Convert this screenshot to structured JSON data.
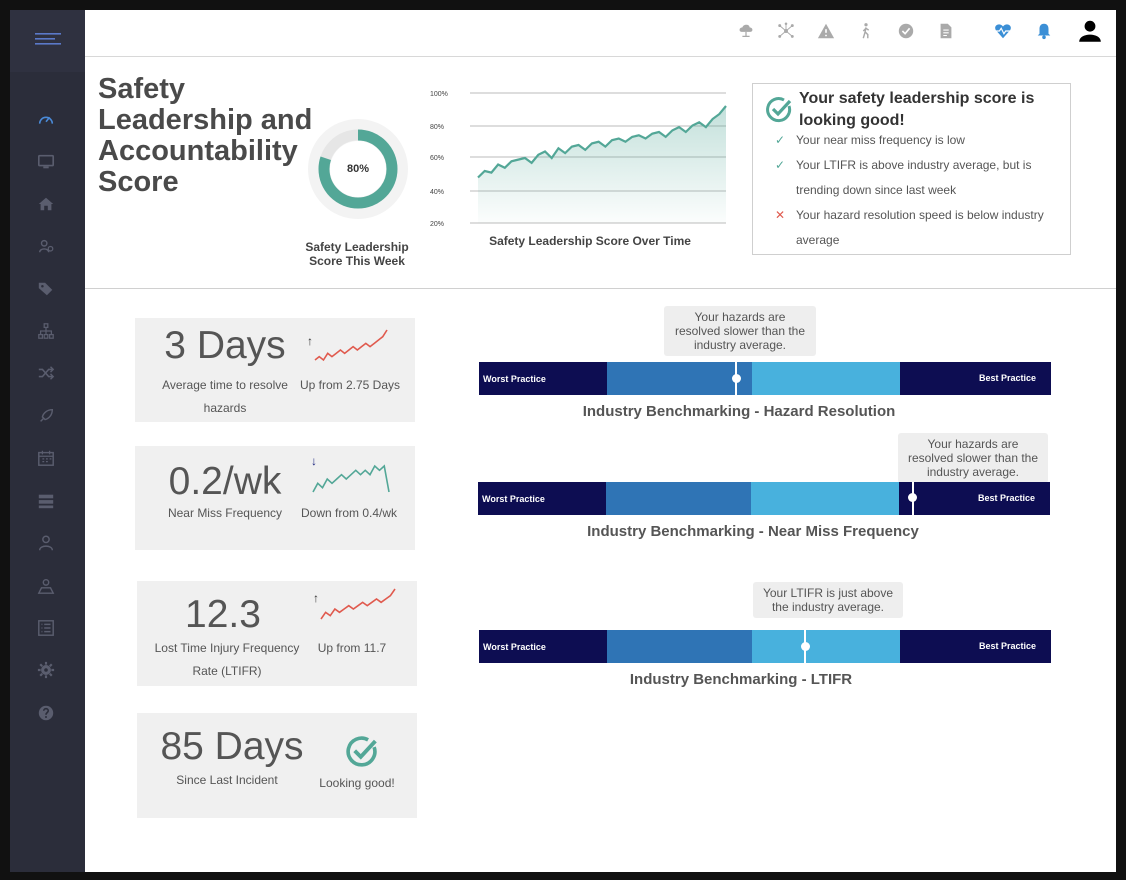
{
  "app": {
    "colors": {
      "sidebar": "#2b2d3a",
      "teal": "#53a797",
      "navy": "#0d0d52",
      "mid_blue": "#2f74b5",
      "light_blue": "#48b1dd",
      "red": "#e05a4e"
    }
  },
  "sidebar": {
    "items": [
      {
        "icon": "speedometer-icon"
      },
      {
        "icon": "monitor-icon"
      },
      {
        "icon": "home-icon"
      },
      {
        "icon": "users-cog-icon"
      },
      {
        "icon": "tags-icon"
      },
      {
        "icon": "org-chart-icon"
      },
      {
        "icon": "shuffle-icon"
      },
      {
        "icon": "rocket-icon"
      },
      {
        "icon": "calendar-icon"
      },
      {
        "icon": "server-icon"
      },
      {
        "icon": "user-icon"
      },
      {
        "icon": "map-user-icon"
      },
      {
        "icon": "list-icon"
      },
      {
        "icon": "gear-icon"
      },
      {
        "icon": "help-icon"
      }
    ]
  },
  "topbar": {
    "icons": [
      "cloud-network-icon",
      "network-icon",
      "warning-icon",
      "walking-person-icon",
      "check-circle-icon",
      "document-icon",
      "heart-rate-icon",
      "bell-icon",
      "user-avatar-icon"
    ]
  },
  "score": {
    "title": "Safety Leadership and Accountability Score",
    "donut_percent": 80,
    "donut_text": "80%",
    "donut_label": "Safety Leadership Score This Week"
  },
  "chart_data": {
    "type": "area",
    "title": "Safety Leadership Score Over Time",
    "xlabel": "",
    "ylabel": "",
    "yticks": [
      "100%",
      "80%",
      "60%",
      "40%",
      "20%"
    ],
    "ylim": [
      20,
      100
    ],
    "values": [
      48,
      52,
      51,
      56,
      54,
      58,
      59,
      60,
      57,
      62,
      64,
      60,
      66,
      63,
      67,
      68,
      65,
      69,
      70,
      67,
      71,
      72,
      70,
      73,
      74,
      72,
      75,
      76,
      73,
      77,
      79,
      76,
      80,
      82,
      79,
      84,
      87,
      92
    ]
  },
  "status_box": {
    "heading": "Your safety leadership score is looking good!",
    "items": [
      {
        "mark": "✓",
        "ok": true,
        "text": "Your near miss frequency is low"
      },
      {
        "mark": "✓",
        "ok": true,
        "text": "Your LTIFR is above industry average, but is trending down since last week"
      },
      {
        "mark": "✕",
        "ok": false,
        "text": "Your hazard resolution speed is below industry average"
      }
    ]
  },
  "kpis": [
    {
      "value": "3 Days",
      "label": "Average time  to resolve hazards",
      "trend_arrow": "↑",
      "trend_text": "Up from 2.75 Days",
      "spark_color": "#e05a4e",
      "spark": [
        3,
        4,
        3,
        5,
        4,
        5,
        6,
        5,
        6,
        7,
        6,
        7,
        8,
        7,
        8,
        9,
        10,
        12
      ]
    },
    {
      "value": "0.2/wk",
      "label": "Near Miss Frequency",
      "trend_arrow": "↓",
      "trend_text": "Down from 0.4/wk",
      "spark_color": "#53a797",
      "spark": [
        4,
        6,
        5,
        7,
        6,
        7,
        8,
        7,
        8,
        9,
        8,
        9,
        8,
        10,
        9,
        10,
        4
      ]
    },
    {
      "value": "12.3",
      "label": "Lost Time Injury Frequency Rate (LTIFR)",
      "trend_arrow": "↑",
      "trend_text": "Up from 11.7",
      "spark_color": "#e05a4e",
      "spark": [
        3,
        5,
        4,
        6,
        5,
        6,
        7,
        6,
        7,
        8,
        7,
        8,
        9,
        8,
        9,
        10,
        12
      ]
    },
    {
      "value": "85 Days",
      "label": "Since Last Incident",
      "trend_text": "Looking good!"
    }
  ],
  "benchmarks": [
    {
      "title": "Industry Benchmarking - Hazard Resolution",
      "worst": "Worst Practice",
      "best": "Best Practice",
      "tooltip": "Your hazards are resolved slower than the industry average.",
      "position": 0.45
    },
    {
      "title": "Industry Benchmarking - Near Miss Frequency",
      "worst": "Worst Practice",
      "best": "Best Practice",
      "tooltip": "Your hazards are resolved slower than the industry average.",
      "position": 0.76
    },
    {
      "title": "Industry Benchmarking - LTIFR",
      "worst": "Worst Practice",
      "best": "Best Practice",
      "tooltip": "Your LTIFR is just above the industry average.",
      "position": 0.57
    }
  ]
}
